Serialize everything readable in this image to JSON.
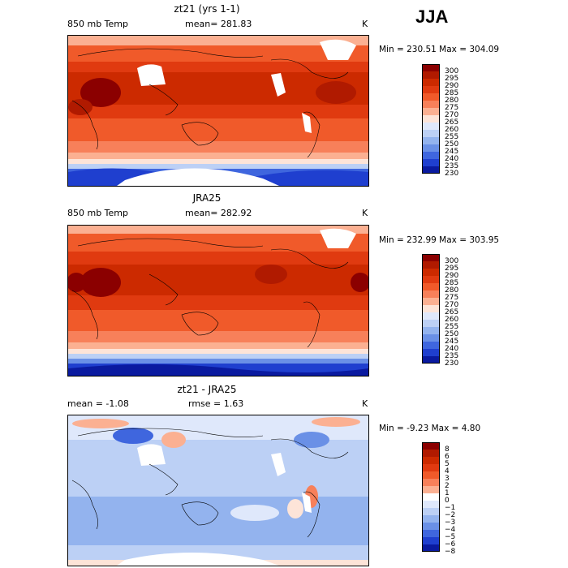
{
  "season": "JJA",
  "panels": [
    {
      "title": "zt21 (yrs 1-1)",
      "left_label": "850 mb Temp",
      "center_label": "mean= 281.83",
      "units": "K",
      "stats": "Min = 230.51 Max = 304.09",
      "colorbar_ticks": [
        "300",
        "295",
        "290",
        "285",
        "280",
        "275",
        "270",
        "265",
        "260",
        "255",
        "250",
        "245",
        "240",
        "235",
        "230"
      ]
    },
    {
      "title": "JRA25",
      "left_label": "850 mb Temp",
      "center_label": "mean= 282.92",
      "units": "K",
      "stats": "Min = 232.99 Max = 303.95",
      "colorbar_ticks": [
        "300",
        "295",
        "290",
        "285",
        "280",
        "275",
        "270",
        "265",
        "260",
        "255",
        "250",
        "245",
        "240",
        "235",
        "230"
      ]
    },
    {
      "title": "zt21 - JRA25",
      "left_label": "mean =   -1.08",
      "center_label": "rmse =    1.63",
      "units": "K",
      "stats": "Min =  -9.23 Max =   4.80",
      "colorbar_ticks": [
        "8",
        "6",
        "5",
        "4",
        "3",
        "2",
        "1",
        "0",
        "−1",
        "−2",
        "−3",
        "−4",
        "−5",
        "−6",
        "−8"
      ]
    }
  ],
  "colors": {
    "temp_scale": [
      "#8b0000",
      "#b01a00",
      "#cc2a00",
      "#e03a10",
      "#f05a2a",
      "#f7805a",
      "#fbb092",
      "#fde4d8",
      "#dfe8fb",
      "#bcd0f5",
      "#93b3ee",
      "#6a90e6",
      "#3f66de",
      "#1f3fcf",
      "#0a1aa0"
    ],
    "diff_scale": [
      "#8b0000",
      "#b01a00",
      "#cc2a00",
      "#e03a10",
      "#f05a2a",
      "#f7805a",
      "#fbb092",
      "#ffffff",
      "#dfe8fb",
      "#bcd0f5",
      "#93b3ee",
      "#6a90e6",
      "#3f66de",
      "#1f3fcf",
      "#0a1aa0"
    ]
  }
}
